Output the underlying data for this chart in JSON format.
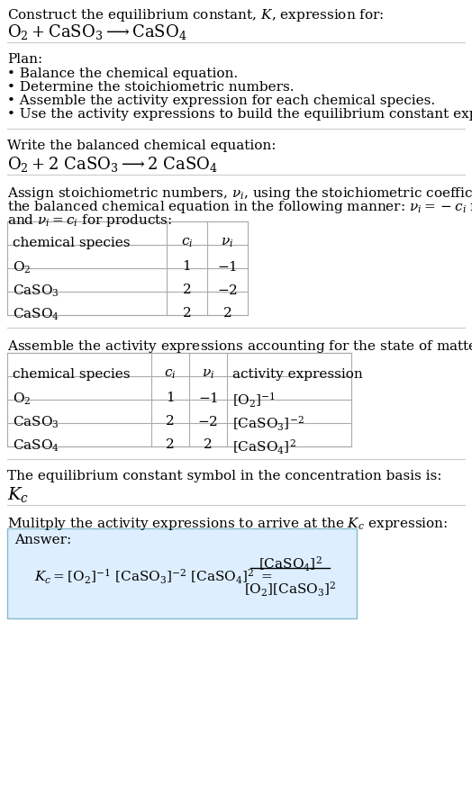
{
  "bg_color": "#ffffff",
  "text_color": "#000000",
  "font_family": "DejaVu Serif",
  "title_line1": "Construct the equilibrium constant, $K$, expression for:",
  "title_line2_parts": [
    {
      "t": "$\\mathregular{O_2}$",
      "fs": 13
    },
    {
      "t": " $+$ ",
      "fs": 12
    },
    {
      "t": "$\\mathregular{CaSO_3}$",
      "fs": 13
    },
    {
      "t": "  $\\longrightarrow$  ",
      "fs": 12
    },
    {
      "t": "$\\mathregular{CaSO_4}$",
      "fs": 13
    }
  ],
  "plan_header": "Plan:",
  "plan_bullets": [
    "• Balance the chemical equation.",
    "• Determine the stoichiometric numbers.",
    "• Assemble the activity expression for each chemical species.",
    "• Use the activity expressions to build the equilibrium constant expression."
  ],
  "balanced_header": "Write the balanced chemical equation:",
  "kc_line1": "The equilibrium constant symbol in the concentration basis is:",
  "kc_symbol": "$K_c$",
  "multiply_line": "Mulitply the activity expressions to arrive at the $K_c$ expression:",
  "stoich_intro1": "Assign stoichiometric numbers, $\\nu_i$, using the stoichiometric coefficients, $c_i$, from",
  "stoich_intro2": "the balanced chemical equation in the following manner: $\\nu_i = -c_i$ for reactants",
  "stoich_intro3": "and $\\nu_i = c_i$ for products:",
  "table1_col_labels": [
    "chemical species",
    "$c_i$",
    "$\\nu_i$"
  ],
  "table1_rows": [
    [
      "$\\mathrm{O_2}$",
      "1",
      "$-1$"
    ],
    [
      "$\\mathrm{CaSO_3}$",
      "2",
      "$-2$"
    ],
    [
      "$\\mathrm{CaSO_4}$",
      "2",
      "2"
    ]
  ],
  "assemble_intro": "Assemble the activity expressions accounting for the state of matter and $\\nu_i$:",
  "table2_col_labels": [
    "chemical species",
    "$c_i$",
    "$\\nu_i$",
    "activity expression"
  ],
  "table2_rows": [
    [
      "$\\mathrm{O_2}$",
      "1",
      "$-1$",
      "$[\\mathrm{O_2}]^{-1}$"
    ],
    [
      "$\\mathrm{CaSO_3}$",
      "2",
      "$-2$",
      "$[\\mathrm{CaSO_3}]^{-2}$"
    ],
    [
      "$\\mathrm{CaSO_4}$",
      "2",
      "2",
      "$[\\mathrm{CaSO_4}]^{2}$"
    ]
  ],
  "answer_box_bg": "#ddeeff",
  "answer_box_edge": "#88bbcc",
  "answer_label": "Answer:",
  "section_line_color": "#cccccc",
  "table_line_color": "#aaaaaa",
  "fs_body": 11,
  "fs_chem": 13,
  "fs_kc": 14
}
